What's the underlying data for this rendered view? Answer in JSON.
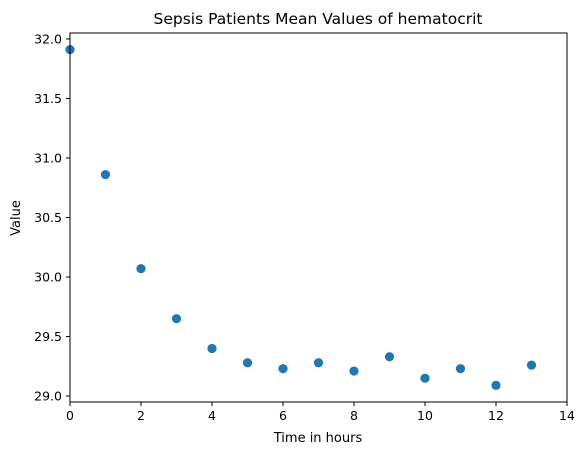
{
  "chart_data": {
    "type": "scatter",
    "title": "Sepsis Patients Mean Values of hematocrit",
    "xlabel": "Time in hours",
    "ylabel": "Value",
    "xlim": [
      0,
      14
    ],
    "ylim": [
      28.95,
      32.05
    ],
    "xticks": [
      0,
      2,
      4,
      6,
      8,
      10,
      12,
      14
    ],
    "yticks": [
      29.0,
      29.5,
      30.0,
      30.5,
      31.0,
      31.5,
      32.0
    ],
    "xtick_labels": [
      "0",
      "2",
      "4",
      "6",
      "8",
      "10",
      "12",
      "14"
    ],
    "ytick_labels": [
      "29.0",
      "29.5",
      "30.0",
      "30.5",
      "31.0",
      "31.5",
      "32.0"
    ],
    "grid": false,
    "marker_color": "#1f77b4",
    "x": [
      0,
      1,
      2,
      3,
      4,
      5,
      6,
      7,
      8,
      9,
      10,
      11,
      12,
      13
    ],
    "y": [
      31.91,
      30.86,
      30.07,
      29.65,
      29.4,
      29.28,
      29.23,
      29.28,
      29.21,
      29.33,
      29.15,
      29.23,
      29.09,
      29.26
    ]
  }
}
